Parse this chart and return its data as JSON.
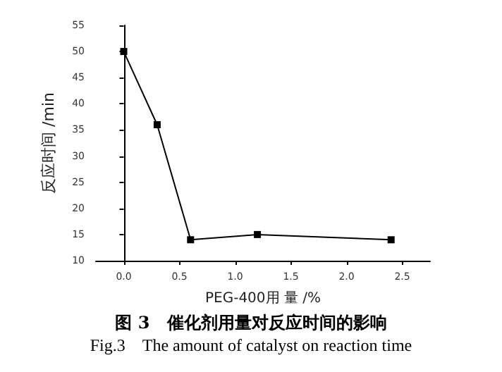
{
  "chart_data": {
    "type": "line",
    "title": "图 3　催化剂用量对反应时间的影响",
    "subtitle": "Fig.3　The amount of catalyst on reaction time",
    "xlabel": "PEG-400用 量 /%",
    "ylabel": "反应时间 /min",
    "x": [
      0,
      0.3,
      0.6,
      1.2,
      2.4
    ],
    "series": [
      {
        "color": "#000000",
        "values": [
          50,
          36,
          14,
          15,
          14
        ]
      }
    ],
    "xlim": [
      -0.25,
      2.75
    ],
    "xticks": [
      {
        "value": 0,
        "label": "0.0"
      },
      0.5,
      {
        "value": 1,
        "label": "1.0"
      },
      1.5,
      {
        "value": 2,
        "label": "2.0"
      },
      2.5
    ],
    "ylim": [
      10,
      55
    ],
    "yticks": [
      10,
      15,
      20,
      25,
      30,
      35,
      40,
      45,
      50,
      55
    ],
    "marker": "square",
    "line_style": "solid"
  }
}
